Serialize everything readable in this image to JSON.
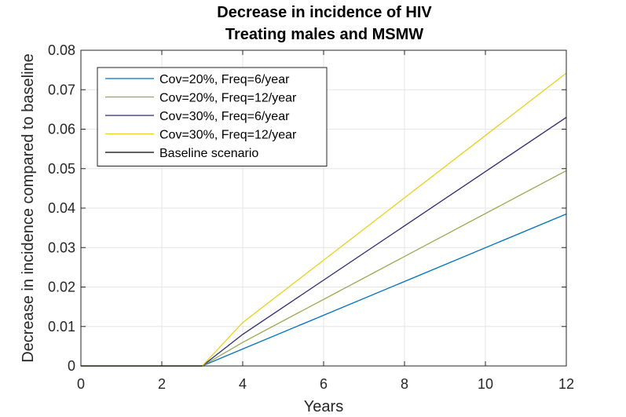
{
  "chart_data": {
    "type": "line",
    "title": [
      "Decrease in incidence of HIV",
      "Treating males and MSMW"
    ],
    "xlabel": "Years",
    "ylabel": "Decrease in incidence compared to baseline",
    "xlim": [
      0,
      12
    ],
    "ylim": [
      0,
      0.08
    ],
    "xticks": [
      0,
      2,
      4,
      6,
      8,
      10,
      12
    ],
    "yticks": [
      0,
      0.01,
      0.02,
      0.03,
      0.04,
      0.05,
      0.06,
      0.07,
      0.08
    ],
    "xtick_labels": [
      "0",
      "2",
      "4",
      "6",
      "8",
      "10",
      "12"
    ],
    "ytick_labels": [
      "0",
      "0.01",
      "0.02",
      "0.03",
      "0.04",
      "0.05",
      "0.06",
      "0.07",
      "0.08"
    ],
    "grid": true,
    "legend_position": "top-left",
    "series": [
      {
        "name": "Cov=20%, Freq=6/year",
        "color": "#0072BD",
        "x": [
          0,
          3,
          4,
          12
        ],
        "y": [
          0,
          0,
          0.0043,
          0.0385
        ]
      },
      {
        "name": "Cov=20%, Freq=12/year",
        "color": "#99A84F",
        "x": [
          0,
          3,
          4,
          12
        ],
        "y": [
          0,
          0,
          0.006,
          0.0495
        ]
      },
      {
        "name": "Cov=30%, Freq=6/year",
        "color": "#2E2A6E",
        "x": [
          0,
          3,
          4,
          12
        ],
        "y": [
          0,
          0,
          0.008,
          0.063
        ]
      },
      {
        "name": "Cov=30%, Freq=12/year",
        "color": "#E6D21E",
        "x": [
          0,
          3,
          4,
          12
        ],
        "y": [
          0,
          0,
          0.011,
          0.0742
        ]
      },
      {
        "name": "Baseline scenario",
        "color": "#000000",
        "x": [
          0,
          3
        ],
        "y": [
          0,
          0
        ]
      }
    ]
  }
}
